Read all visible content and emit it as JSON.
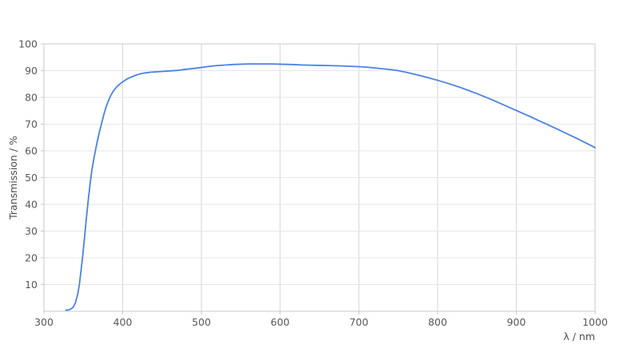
{
  "figure": {
    "background": "#ffffff"
  },
  "chart_data": {
    "type": "line",
    "title": "",
    "xlabel": "λ / nm",
    "ylabel": "Transmission / %",
    "xlim": [
      300,
      1000
    ],
    "ylim": [
      0,
      100
    ],
    "x_ticks": [
      300,
      400,
      500,
      600,
      700,
      800,
      900,
      1000
    ],
    "y_ticks": [
      10,
      20,
      30,
      40,
      50,
      60,
      70,
      80,
      90,
      100
    ],
    "grid": true,
    "legend": "none",
    "series": [
      {
        "name": "Transmission",
        "color": "#4a82e4",
        "points": [
          [
            328,
            0.4
          ],
          [
            331,
            0.5
          ],
          [
            334,
            0.8
          ],
          [
            337,
            1.5
          ],
          [
            340,
            3.2
          ],
          [
            343,
            6.5
          ],
          [
            345,
            10
          ],
          [
            347,
            15
          ],
          [
            349,
            20
          ],
          [
            351,
            26
          ],
          [
            353,
            32
          ],
          [
            355,
            38
          ],
          [
            357,
            43.5
          ],
          [
            359,
            48.5
          ],
          [
            361,
            53
          ],
          [
            364,
            58
          ],
          [
            367,
            62.5
          ],
          [
            370,
            66.5
          ],
          [
            373,
            70
          ],
          [
            376,
            73.5
          ],
          [
            379,
            76.5
          ],
          [
            382,
            78.8
          ],
          [
            385,
            80.8
          ],
          [
            388,
            82.3
          ],
          [
            392,
            83.8
          ],
          [
            396,
            84.9
          ],
          [
            400,
            85.8
          ],
          [
            405,
            86.8
          ],
          [
            410,
            87.5
          ],
          [
            415,
            88.1
          ],
          [
            420,
            88.6
          ],
          [
            425,
            89.0
          ],
          [
            430,
            89.2
          ],
          [
            435,
            89.4
          ],
          [
            440,
            89.5
          ],
          [
            445,
            89.6
          ],
          [
            450,
            89.7
          ],
          [
            460,
            89.9
          ],
          [
            470,
            90.1
          ],
          [
            480,
            90.5
          ],
          [
            490,
            90.8
          ],
          [
            500,
            91.2
          ],
          [
            510,
            91.6
          ],
          [
            520,
            91.9
          ],
          [
            530,
            92.1
          ],
          [
            540,
            92.3
          ],
          [
            550,
            92.4
          ],
          [
            560,
            92.5
          ],
          [
            575,
            92.5
          ],
          [
            590,
            92.5
          ],
          [
            600,
            92.4
          ],
          [
            615,
            92.3
          ],
          [
            630,
            92.1
          ],
          [
            645,
            92.0
          ],
          [
            660,
            91.9
          ],
          [
            675,
            91.8
          ],
          [
            690,
            91.6
          ],
          [
            700,
            91.5
          ],
          [
            710,
            91.3
          ],
          [
            720,
            91.0
          ],
          [
            730,
            90.7
          ],
          [
            740,
            90.4
          ],
          [
            750,
            90.0
          ],
          [
            760,
            89.4
          ],
          [
            770,
            88.7
          ],
          [
            780,
            88.0
          ],
          [
            790,
            87.2
          ],
          [
            800,
            86.4
          ],
          [
            810,
            85.5
          ],
          [
            820,
            84.6
          ],
          [
            830,
            83.6
          ],
          [
            840,
            82.5
          ],
          [
            850,
            81.4
          ],
          [
            860,
            80.2
          ],
          [
            870,
            79.0
          ],
          [
            880,
            77.7
          ],
          [
            890,
            76.4
          ],
          [
            900,
            75.1
          ],
          [
            910,
            73.8
          ],
          [
            920,
            72.5
          ],
          [
            930,
            71.1
          ],
          [
            940,
            69.8
          ],
          [
            950,
            68.4
          ],
          [
            960,
            67.0
          ],
          [
            970,
            65.6
          ],
          [
            980,
            64.2
          ],
          [
            990,
            62.7
          ],
          [
            1000,
            61.2
          ]
        ]
      }
    ],
    "colors": {
      "line": "#4a82e4",
      "grid_horizontal": "#e6e6e6",
      "grid_vertical": "#d6d6d6",
      "axis_border": "#c9c9c9",
      "tick_label": "#58585a",
      "axis_title": "#4a4a4c"
    }
  }
}
